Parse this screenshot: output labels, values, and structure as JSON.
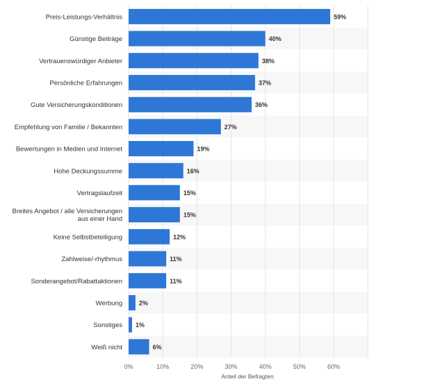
{
  "chart_data": {
    "type": "bar",
    "orientation": "horizontal",
    "categories": [
      "Preis-Leistungs-Verhältnis",
      "Günstige Beiträge",
      "Vertrauenswürdiger Anbieter",
      "Persönliche Erfahrungen",
      "Gute Versicherungskonditionen",
      "Empfehlung von Familie / Bekannten",
      "Bewertungen in Medien und Internet",
      "Hohe Deckungssumme",
      "Vertragslaufzeit",
      "Breites Angebot / alle Versicherungen aus einer Hand",
      "Keine Selbstbeteiligung",
      "Zahlweise/-rhythmus",
      "Sonderangebot/Rabattaktionen",
      "Werbung",
      "Sonstiges",
      "Weiß nicht"
    ],
    "category_lines": [
      [
        "Preis-Leistungs-Verhältnis"
      ],
      [
        "Günstige Beiträge"
      ],
      [
        "Vertrauenswürdiger Anbieter"
      ],
      [
        "Persönliche Erfahrungen"
      ],
      [
        "Gute Versicherungskonditionen"
      ],
      [
        "Empfehlung von Familie / Bekannten"
      ],
      [
        "Bewertungen in Medien und Internet"
      ],
      [
        "Hohe Deckungssumme"
      ],
      [
        "Vertragslaufzeit"
      ],
      [
        "Breites Angebot / alle Versicherungen",
        "aus einer Hand"
      ],
      [
        "Keine Selbstbeteiligung"
      ],
      [
        "Zahlweise/-rhythmus"
      ],
      [
        "Sonderangebot/Rabattaktionen"
      ],
      [
        "Werbung"
      ],
      [
        "Sonstiges"
      ],
      [
        "Weiß nicht"
      ]
    ],
    "values": [
      59,
      40,
      38,
      37,
      36,
      27,
      19,
      16,
      15,
      15,
      12,
      11,
      11,
      2,
      1,
      6
    ],
    "value_labels": [
      "59%",
      "40%",
      "38%",
      "37%",
      "36%",
      "27%",
      "19%",
      "16%",
      "15%",
      "15%",
      "12%",
      "11%",
      "11%",
      "2%",
      "1%",
      "6%"
    ],
    "xticks": [
      0,
      10,
      20,
      30,
      40,
      50,
      60
    ],
    "xtick_labels": [
      "0%",
      "10%",
      "20%",
      "30%",
      "40%",
      "50%",
      "60%"
    ],
    "xlim": [
      0,
      70
    ],
    "xlabel": "Anteil der Befragten",
    "grid": true,
    "bar_color": "#2f77d6",
    "alt_row_color": "#f7f7f7",
    "grid_color": "#e4e4e4"
  }
}
